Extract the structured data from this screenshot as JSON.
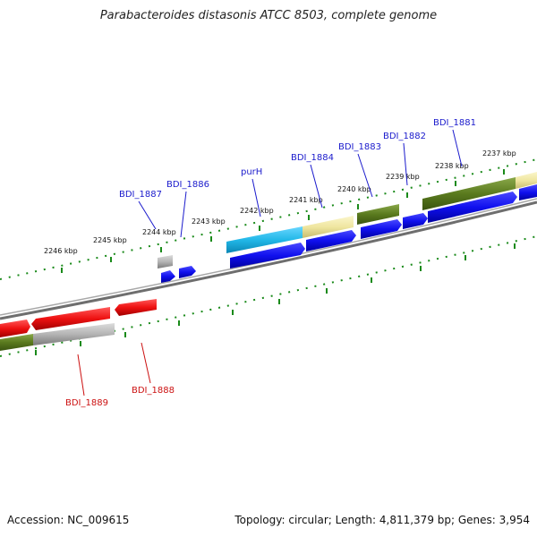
{
  "title": "Parabacteroides distasonis ATCC 8503, complete genome",
  "accession": "Accession: NC_009615",
  "summary": "Topology: circular; Length: 4,811,379 bp; Genes: 3,954",
  "tick_labels": [
    "2246 kbp",
    "2245 kbp",
    "2244 kbp",
    "2243 kbp",
    "2242 kbp",
    "2241 kbp",
    "2240 kbp",
    "2239 kbp",
    "2238 kbp",
    "2237 kbp"
  ],
  "genes_top": [
    "BDI_1887",
    "BDI_1886",
    "purH",
    "BDI_1884",
    "BDI_1883",
    "BDI_1882",
    "BDI_1881"
  ],
  "genes_bottom": [
    "BDI_1889",
    "BDI_1888"
  ],
  "colors": {
    "forward_gene": "#1010ee",
    "reverse_gene": "#ee1111",
    "cds_green": "#5a7a1e",
    "cds_cyan": "#22b8e8",
    "cds_yellow": "#efe6a0",
    "cds_grey": "#b4b4b4",
    "backbone": "#808080",
    "tick": "#1a8a1a"
  }
}
